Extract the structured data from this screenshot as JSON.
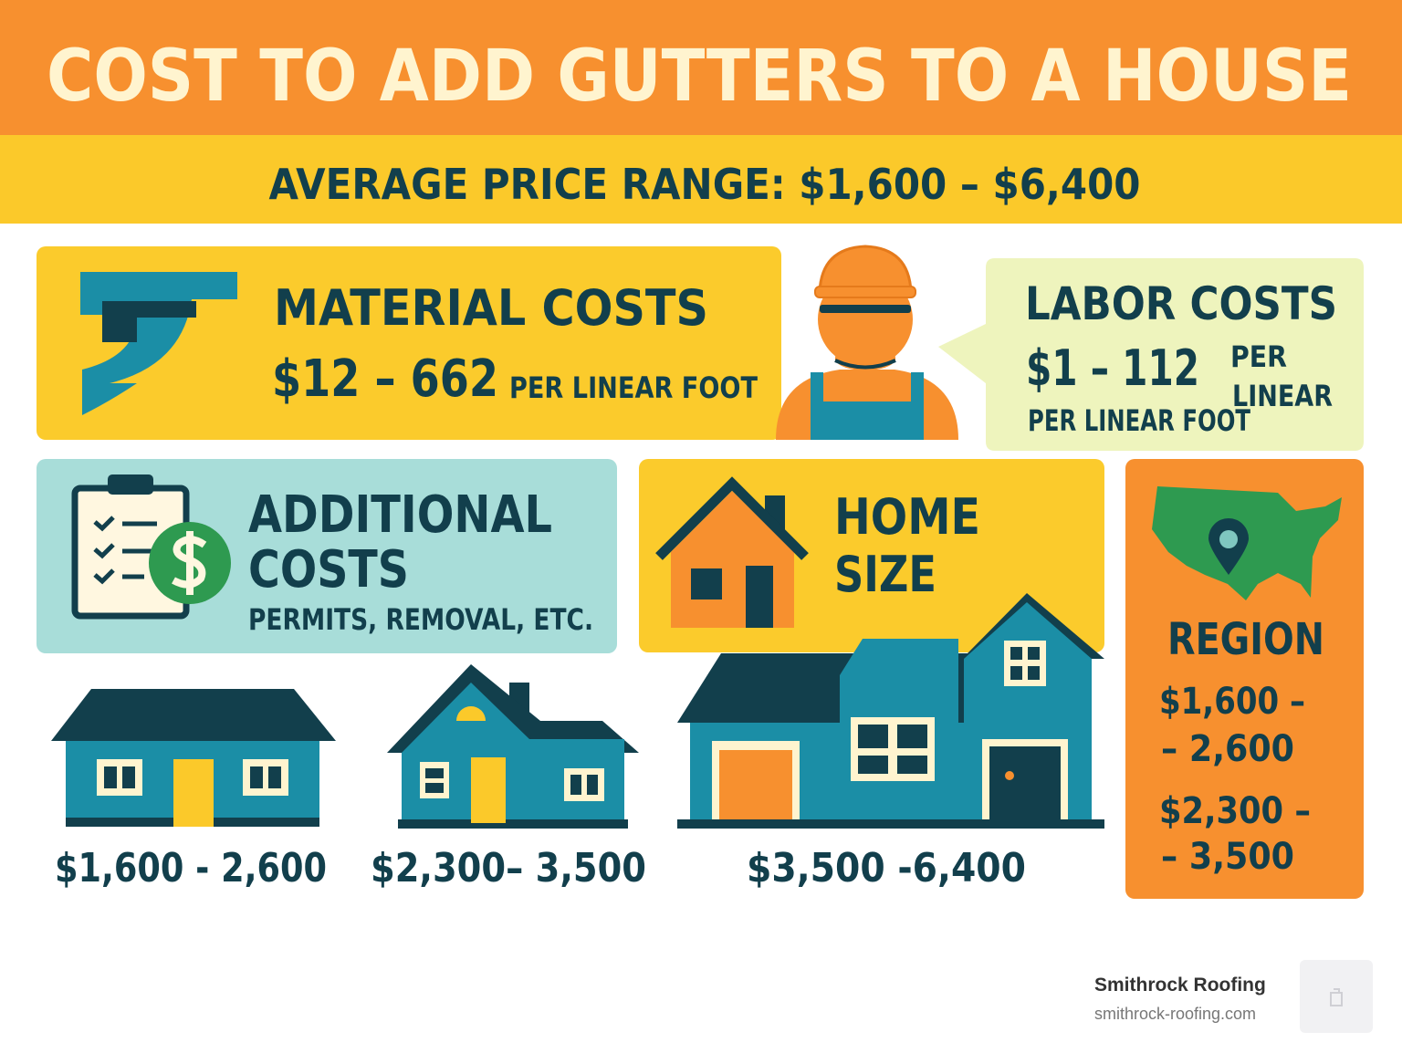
{
  "header": {
    "title": "COST TO ADD GUTTERS TO A HOUSE",
    "subtitle": "AVERAGE PRICE RANGE: $1,600 – $6,400"
  },
  "material": {
    "title": "MATERIAL COSTS",
    "range": "$12 – 662",
    "unit": "PER LINEAR FOOT"
  },
  "labor": {
    "title": "LABOR COSTS",
    "range": "$1 – 112",
    "unit_side": [
      "PER",
      "LINEAR"
    ],
    "unit": "PER LINEAR FOOT"
  },
  "additional": {
    "title": [
      "ADDITIONAL",
      "COSTS"
    ],
    "note": "PERMITS, REMOVAL, ETC."
  },
  "home_size": {
    "title": [
      "HOME",
      "SIZE"
    ]
  },
  "region": {
    "title": "REGION",
    "ranges": [
      [
        "$1,600 –",
        "– 2,600"
      ],
      [
        "$2,300 –",
        "– 3,500"
      ]
    ]
  },
  "houses": [
    "$1,600 - 2,600",
    "$2,300– 3,500",
    "$3,500 -6,400"
  ],
  "footer": {
    "brand": "Smithrock Roofing",
    "url": "smithrock-roofing.com"
  }
}
